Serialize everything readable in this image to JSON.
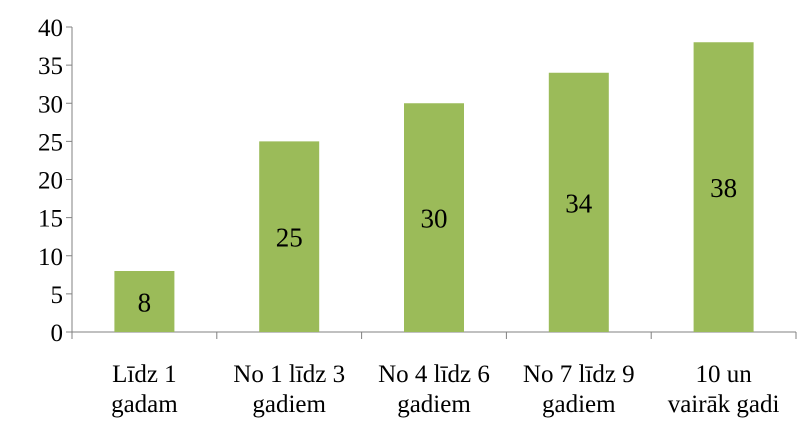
{
  "chart_data": {
    "type": "bar",
    "categories": [
      [
        "Līdz 1",
        "gadam"
      ],
      [
        "No 1 līdz 3",
        "gadiem"
      ],
      [
        "No 4 līdz 6",
        "gadiem"
      ],
      [
        "No 7 līdz 9",
        "gadiem"
      ],
      [
        "10 un",
        "vairāk gadi"
      ]
    ],
    "values": [
      8,
      25,
      30,
      34,
      38
    ],
    "data_labels": [
      "8",
      "25",
      "30",
      "34",
      "38"
    ],
    "yticks": [
      "0",
      "5",
      "10",
      "15",
      "20",
      "25",
      "30",
      "35",
      "40"
    ],
    "ylim": [
      0,
      40
    ],
    "grid": false,
    "legend": "none",
    "bar_color": "#9BBB59"
  }
}
